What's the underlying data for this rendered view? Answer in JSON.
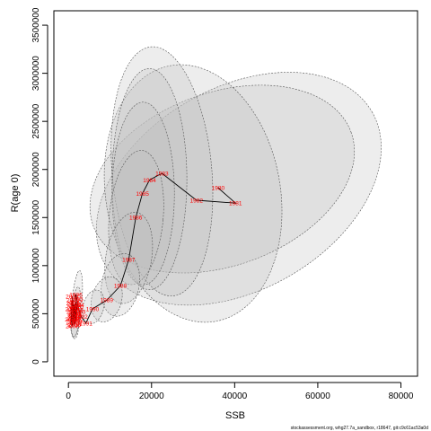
{
  "chart_data": {
    "type": "scatter",
    "title": "",
    "xlabel": "SSB",
    "ylabel": "R(age 0)",
    "xlim": [
      -3500,
      84000
    ],
    "ylim": [
      -150000,
      3650000
    ],
    "x_ticks": [
      "0",
      "20000",
      "40000",
      "60000",
      "80000"
    ],
    "y_ticks": [
      "0",
      "500000",
      "1000000",
      "1500000",
      "2000000",
      "2500000",
      "3000000",
      "3500000"
    ],
    "footnote": "stockassessment.org, whg27.7a_sandbox, r18647, git:c9c61ac53a0d",
    "line_color": "#000000",
    "label_color": "#ff0000",
    "ellipse_fill": "#bebebe",
    "ellipse_stroke": "#555555",
    "labelled_points": [
      {
        "label": "1981",
        "x": 40200,
        "y": 1650000
      },
      {
        "label": "1980",
        "x": 36000,
        "y": 1810000
      },
      {
        "label": "1982",
        "x": 30800,
        "y": 1680000
      },
      {
        "label": "1983",
        "x": 22500,
        "y": 1960000
      },
      {
        "label": "1984",
        "x": 19500,
        "y": 1890000
      },
      {
        "label": "1985",
        "x": 17800,
        "y": 1750000
      },
      {
        "label": "1986",
        "x": 16200,
        "y": 1500000
      },
      {
        "label": "1987",
        "x": 14500,
        "y": 1060000
      },
      {
        "label": "1988",
        "x": 12500,
        "y": 790000
      },
      {
        "label": "1989",
        "x": 9200,
        "y": 640000
      },
      {
        "label": "1990",
        "x": 5800,
        "y": 550000
      }
    ],
    "recent_points": [
      {
        "label": "1991",
        "x": 4200,
        "y": 400000
      },
      {
        "label": "1992",
        "x": 3100,
        "y": 470000
      },
      {
        "label": "1993",
        "x": 2600,
        "y": 520000
      },
      {
        "label": "1994",
        "x": 2200,
        "y": 590000
      },
      {
        "label": "1995",
        "x": 2000,
        "y": 650000
      },
      {
        "label": "1996",
        "x": 1800,
        "y": 700000
      },
      {
        "label": "1997",
        "x": 1600,
        "y": 560000
      },
      {
        "label": "1998",
        "x": 1500,
        "y": 480000
      },
      {
        "label": "1999",
        "x": 1700,
        "y": 420000
      },
      {
        "label": "2000",
        "x": 1400,
        "y": 380000
      },
      {
        "label": "2001",
        "x": 1200,
        "y": 450000
      },
      {
        "label": "2002",
        "x": 1100,
        "y": 520000
      },
      {
        "label": "2003",
        "x": 1000,
        "y": 610000
      },
      {
        "label": "2004",
        "x": 900,
        "y": 680000
      },
      {
        "label": "2005",
        "x": 800,
        "y": 550000
      },
      {
        "label": "2006",
        "x": 700,
        "y": 440000
      },
      {
        "label": "2007",
        "x": 900,
        "y": 370000
      },
      {
        "label": "2008",
        "x": 1300,
        "y": 500000
      },
      {
        "label": "2009",
        "x": 1100,
        "y": 640000
      },
      {
        "label": "2010",
        "x": 1000,
        "y": 420000
      },
      {
        "label": "2011",
        "x": 1200,
        "y": 560000
      },
      {
        "label": "2012",
        "x": 1500,
        "y": 460000
      },
      {
        "label": "2013",
        "x": 1300,
        "y": 600000
      },
      {
        "label": "2014",
        "x": 1600,
        "y": 510000
      },
      {
        "label": "2015",
        "x": 1900,
        "y": 430000
      },
      {
        "label": "2016",
        "x": 2100,
        "y": 540000
      },
      {
        "label": "2017",
        "x": 1800,
        "y": 620000
      },
      {
        "label": "2018",
        "x": 1500,
        "y": 390000
      },
      {
        "label": "2019",
        "x": 1700,
        "y": 480000
      },
      {
        "label": "2020",
        "x": 2000,
        "y": 570000
      }
    ],
    "confidence_ellipses": [
      {
        "x": 41000,
        "y": 1800000,
        "sx": 37000,
        "sy": 1050000,
        "angle": -30,
        "opacity": 0.28
      },
      {
        "x": 37000,
        "y": 1900000,
        "sx": 33000,
        "sy": 900000,
        "angle": -20,
        "opacity": 0.28
      },
      {
        "x": 30000,
        "y": 1750000,
        "sx": 21000,
        "sy": 1350000,
        "angle": -10,
        "opacity": 0.28
      },
      {
        "x": 22500,
        "y": 1980000,
        "sx": 12000,
        "sy": 1300000,
        "angle": -5,
        "opacity": 0.28
      },
      {
        "x": 19500,
        "y": 1900000,
        "sx": 9000,
        "sy": 1150000,
        "angle": 0,
        "opacity": 0.28
      },
      {
        "x": 18000,
        "y": 1750000,
        "sx": 7500,
        "sy": 950000,
        "angle": 0,
        "opacity": 0.28
      },
      {
        "x": 16300,
        "y": 1500000,
        "sx": 6500,
        "sy": 700000,
        "angle": 5,
        "opacity": 0.28
      },
      {
        "x": 14500,
        "y": 1080000,
        "sx": 5500,
        "sy": 480000,
        "angle": 10,
        "opacity": 0.28
      },
      {
        "x": 12500,
        "y": 800000,
        "sx": 4500,
        "sy": 330000,
        "angle": 10,
        "opacity": 0.28
      },
      {
        "x": 9200,
        "y": 650000,
        "sx": 3600,
        "sy": 240000,
        "angle": 15,
        "opacity": 0.28
      },
      {
        "x": 6000,
        "y": 570000,
        "sx": 2500,
        "sy": 180000,
        "angle": 15,
        "opacity": 0.28
      },
      {
        "x": 2000,
        "y": 600000,
        "sx": 1200,
        "sy": 350000,
        "angle": 5,
        "opacity": 0.22
      },
      {
        "x": 1800,
        "y": 520000,
        "sx": 1000,
        "sy": 260000,
        "angle": 5,
        "opacity": 0.22
      },
      {
        "x": 1500,
        "y": 460000,
        "sx": 1100,
        "sy": 220000,
        "angle": 0,
        "opacity": 0.22
      }
    ],
    "grid": false,
    "legend": "none"
  }
}
